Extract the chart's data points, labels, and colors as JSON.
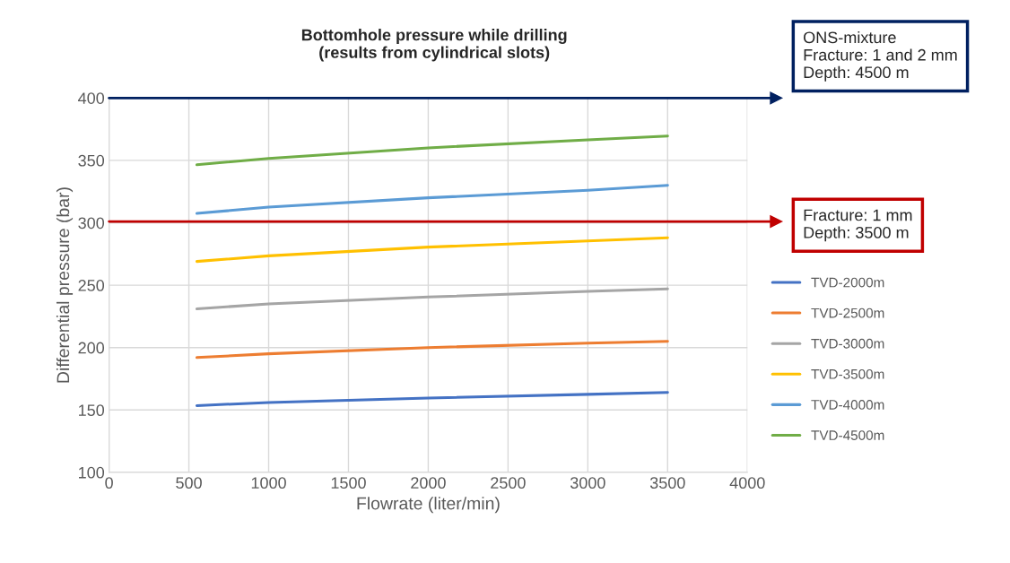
{
  "chart_data": {
    "type": "line",
    "title": "Bottomhole pressure while drilling\n(results from cylindrical slots)",
    "xlabel": "Flowrate (liter/min)",
    "ylabel": "Differential pressure (bar)",
    "x": [
      550,
      1000,
      2000,
      3000,
      3500
    ],
    "series": [
      {
        "name": "TVD-2000m",
        "color": "#4472c4",
        "values": [
          153.5,
          156,
          159.5,
          162.5,
          164
        ]
      },
      {
        "name": "TVD-2500m",
        "color": "#ed7d31",
        "values": [
          192,
          195,
          200,
          203.5,
          205
        ]
      },
      {
        "name": "TVD-3000m",
        "color": "#a5a5a5",
        "values": [
          231,
          235,
          240.5,
          245,
          247
        ]
      },
      {
        "name": "TVD-3500m",
        "color": "#ffc000",
        "values": [
          269,
          273.5,
          280.5,
          285.5,
          288
        ]
      },
      {
        "name": "TVD-4000m",
        "color": "#5b9bd5",
        "values": [
          307.5,
          312.5,
          320,
          326,
          330
        ]
      },
      {
        "name": "TVD-4500m",
        "color": "#70ad47",
        "values": [
          346.5,
          351.5,
          360,
          366.5,
          369.5
        ]
      }
    ],
    "xlim": [
      0,
      4000
    ],
    "xticks": [
      0,
      500,
      1000,
      1500,
      2000,
      2500,
      3000,
      3500,
      4000
    ],
    "ylim": [
      100,
      400
    ],
    "yticks": [
      100,
      150,
      200,
      250,
      300,
      350,
      400
    ],
    "ref_lines": [
      {
        "axis": "y",
        "value": 400,
        "color": "#002060"
      },
      {
        "axis": "y",
        "value": 301,
        "color": "#c00000"
      }
    ],
    "annotations": [
      "ONS-mixture\nFracture: 1 and 2 mm\nDepth: 4500 m",
      "Fracture: 1 mm\nDepth: 3500 m"
    ],
    "grid": true,
    "legend": "right",
    "marker": "none",
    "line_style": "solid"
  }
}
